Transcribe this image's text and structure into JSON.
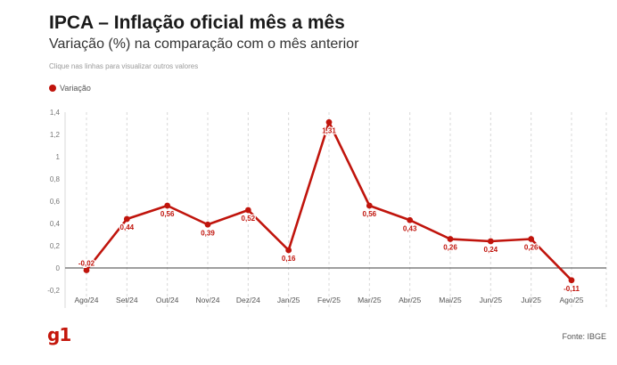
{
  "header": {
    "title": "IPCA – Inflação oficial mês a mês",
    "subtitle": "Variação (%) na comparação com o mês anterior",
    "hint": "Clique nas linhas para visualizar outros valores"
  },
  "footer": {
    "logo": "g1",
    "source": "Fonte: IBGE"
  },
  "colors": {
    "series": "#c0140c",
    "zero_line": "#666666",
    "grid": "#d8d8d8"
  },
  "chart_data": {
    "type": "line",
    "title": "IPCA – Inflação oficial mês a mês",
    "subtitle": "Variação (%) na comparação com o mês anterior",
    "categories": [
      "Ago/24",
      "Set/24",
      "Out/24",
      "Nov/24",
      "Dez/24",
      "Jan/25",
      "Fev/25",
      "Mar/25",
      "Abr/25",
      "Mai/25",
      "Jun/25",
      "Jul/25",
      "Ago/25"
    ],
    "series": [
      {
        "name": "Variação",
        "values": [
          -0.02,
          0.44,
          0.56,
          0.39,
          0.52,
          0.16,
          1.31,
          0.56,
          0.43,
          0.26,
          0.24,
          0.26,
          -0.11
        ],
        "labels": [
          "-0,02",
          "0,44",
          "0,56",
          "0,39",
          "0,52",
          "0,16",
          "1,31",
          "0,56",
          "0,43",
          "0,26",
          "0,24",
          "0,26",
          "-0,11"
        ]
      }
    ],
    "ylim": [
      -0.2,
      1.4
    ],
    "yticks": [
      -0.2,
      0,
      0.2,
      0.4,
      0.6,
      0.8,
      1,
      1.2,
      1.4
    ],
    "ytick_labels": [
      "-0,2",
      "0",
      "0,2",
      "0,4",
      "0,6",
      "0,8",
      "1",
      "1,2",
      "1,4"
    ],
    "xlabel": "",
    "ylabel": "",
    "grid": "vertical dashed",
    "legend": "top-left"
  }
}
